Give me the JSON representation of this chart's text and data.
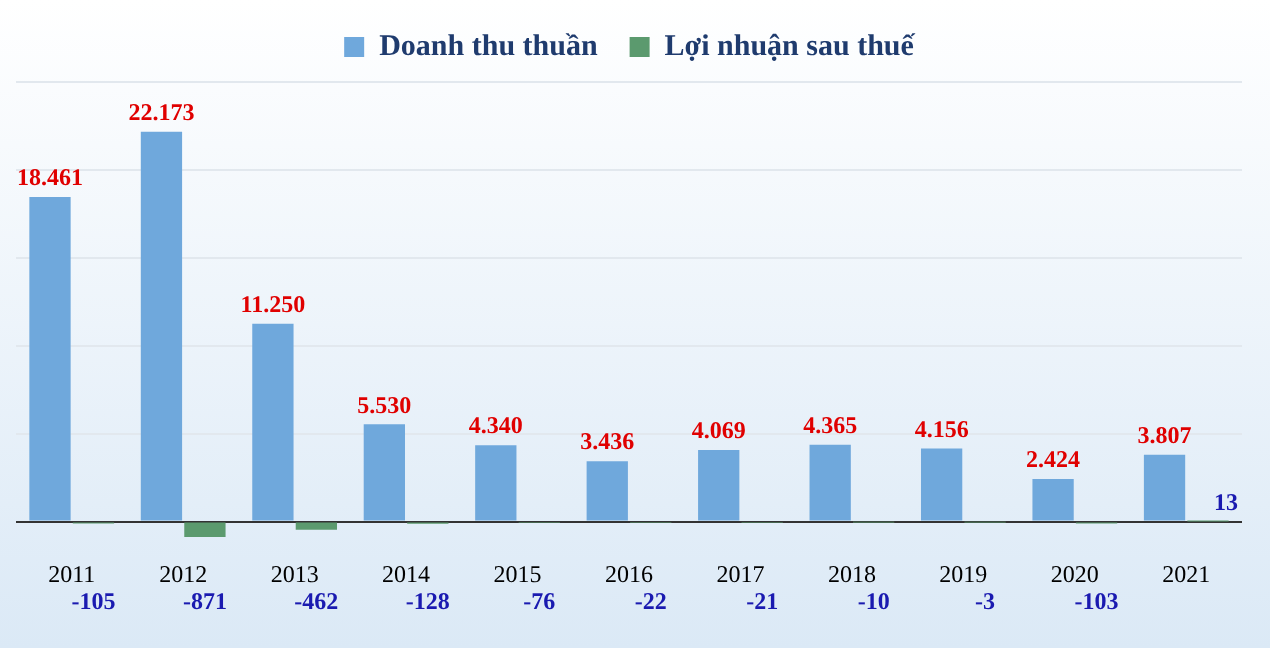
{
  "chart_data": {
    "type": "bar",
    "categories": [
      "2011",
      "2012",
      "2013",
      "2014",
      "2015",
      "2016",
      "2017",
      "2018",
      "2019",
      "2020",
      "2021"
    ],
    "series": [
      {
        "name": "Doanh thu thuần",
        "color": "#6fa8dc",
        "values": [
          18461,
          22173,
          11250,
          5530,
          4340,
          3436,
          4069,
          4365,
          4156,
          2424,
          3807
        ],
        "value_labels": [
          "18.461",
          "22.173",
          "11.250",
          "5.530",
          "4.340",
          "3.436",
          "4.069",
          "4.365",
          "4.156",
          "2.424",
          "3.807"
        ]
      },
      {
        "name": "Lợi nhuận sau thuế",
        "color": "#5b9a6e",
        "values": [
          -105,
          -871,
          -462,
          -128,
          -76,
          -22,
          -21,
          -10,
          -3,
          -103,
          13
        ],
        "value_labels": [
          "-105",
          "-871",
          "-462",
          "-128",
          "-76",
          "-22",
          "-21",
          "-10",
          "-3",
          "-103",
          "13"
        ]
      }
    ],
    "ylim": [
      -1000,
      25000
    ],
    "yticks": [
      {
        "value": 0,
        "label": null
      },
      {
        "value": 5000,
        "label": null
      },
      {
        "value": 10000,
        "label": null
      },
      {
        "value": 15000,
        "label": null
      },
      {
        "value": 20000,
        "label": null
      },
      {
        "value": 25000,
        "label": null
      }
    ],
    "grid": "y",
    "legend": "top",
    "tick_labels": "x"
  }
}
